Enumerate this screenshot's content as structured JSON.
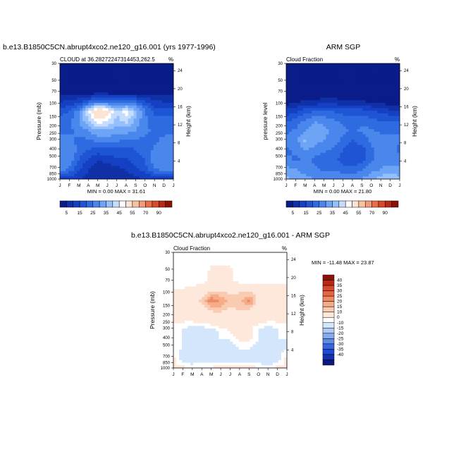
{
  "colors": {
    "fraction_scale": [
      "#0a1c8a",
      "#1030a8",
      "#1540c4",
      "#1e55d4",
      "#2f6be0",
      "#4a87ec",
      "#6ea4f5",
      "#96c0fb",
      "#c4dcfd",
      "#ffffff",
      "#fde4d2",
      "#f8c1a2",
      "#f39a76",
      "#ea6e4b",
      "#d84a2b",
      "#b82a16",
      "#8a1208"
    ],
    "diff_scale": [
      "#0a1880",
      "#1430b0",
      "#1d4ad0",
      "#3766e0",
      "#5e8ae8",
      "#86abef",
      "#aecaf5",
      "#d4e6fb",
      "#ffffff",
      "#fde8db",
      "#f9ccb1",
      "#f5ac88",
      "#f08a62",
      "#e86540",
      "#d84a2b",
      "#b82a16",
      "#8a1208"
    ]
  },
  "months": [
    "J",
    "F",
    "M",
    "A",
    "M",
    "J",
    "J",
    "A",
    "S",
    "O",
    "N",
    "D",
    "J"
  ],
  "pressure_ticks": [
    "30",
    "50",
    "70",
    "100",
    "150",
    "200",
    "250",
    "300",
    "400",
    "500",
    "700",
    "850",
    "1000"
  ],
  "height_ticks": [
    "24",
    "20",
    "16",
    "12",
    "8",
    "4"
  ],
  "panels": {
    "model": {
      "run_title": "b.e13.B1850C5CN.abrupt4xco2.ne120_g16.001 (yrs 1977-1996)",
      "left_title": "CLOUD at 36.28272247314453,262.5",
      "right_title": "%",
      "ylabel": "Pressure (mb)",
      "ylabel_right": "Height (km)",
      "min_max": "MIN =   0.00 MAX =  31.61"
    },
    "obs": {
      "center_title": "ARM SGP",
      "left_title": "Cloud Fraction",
      "right_title": "%",
      "ylabel": "pressure level",
      "ylabel_right": "Height (km)",
      "min_max": "MIN =   0.00 MAX =  21.80"
    },
    "diff": {
      "center_title": "b.e13.B1850C5CN.abrupt4xco2.ne120_g16.001 - ARM SGP",
      "left_title": "Cloud Fraction",
      "right_title": "%",
      "ylabel": "Pressure (mb)",
      "ylabel_right": "Height (km)",
      "min_max": "MIN = -11.48 MAX =  23.87"
    }
  },
  "colorbar_labels": [
    "5",
    "15",
    "25",
    "35",
    "45",
    "55",
    "70",
    "90"
  ],
  "diff_colorbar_labels": [
    "40",
    "35",
    "30",
    "25",
    "20",
    "15",
    "10",
    "0",
    "-10",
    "-15",
    "-20",
    "-25",
    "-30",
    "-35",
    "-40"
  ],
  "chart_data": [
    {
      "type": "heatmap",
      "title": "CLOUD at 36.28272247314453,262.5",
      "xlabel": "",
      "ylabel": "Pressure (mb)",
      "x": [
        "J",
        "F",
        "M",
        "A",
        "M",
        "J",
        "J",
        "A",
        "S",
        "O",
        "N",
        "D",
        "J"
      ],
      "y": [
        30,
        50,
        70,
        100,
        150,
        200,
        250,
        300,
        400,
        500,
        700,
        850,
        1000
      ],
      "z": [
        [
          0,
          0,
          0,
          0,
          0,
          0,
          0,
          0,
          0,
          0,
          0,
          0,
          0
        ],
        [
          0,
          0,
          0,
          0,
          0,
          0,
          0,
          0,
          0,
          0,
          0,
          0,
          0
        ],
        [
          0,
          0,
          0,
          0,
          0,
          0,
          0,
          0,
          0,
          0,
          0,
          0,
          0
        ],
        [
          1,
          1,
          1,
          1,
          1,
          1,
          1,
          1,
          1,
          1,
          1,
          1,
          1
        ],
        [
          5,
          6,
          7,
          10,
          13,
          12,
          11,
          12,
          11,
          8,
          6,
          5,
          5
        ],
        [
          9,
          10,
          14,
          22,
          30,
          27,
          20,
          24,
          19,
          13,
          9,
          9,
          9
        ],
        [
          11,
          12,
          15,
          20,
          24,
          23,
          19,
          21,
          17,
          13,
          11,
          11,
          11
        ],
        [
          12,
          12,
          13,
          15,
          17,
          17,
          16,
          16,
          15,
          13,
          12,
          12,
          12
        ],
        [
          13,
          13,
          12,
          12,
          13,
          14,
          13,
          12,
          12,
          12,
          12,
          13,
          13
        ],
        [
          14,
          14,
          12,
          10,
          9,
          9,
          9,
          9,
          10,
          11,
          13,
          14,
          14
        ],
        [
          15,
          14,
          10,
          7,
          5,
          6,
          7,
          7,
          9,
          10,
          14,
          15,
          15
        ],
        [
          14,
          12,
          8,
          5,
          3,
          3,
          4,
          5,
          7,
          9,
          12,
          14,
          14
        ],
        [
          6,
          6,
          5,
          4,
          3,
          3,
          3,
          4,
          4,
          5,
          6,
          6,
          6
        ]
      ],
      "zlim": [
        0,
        31.61
      ]
    },
    {
      "type": "heatmap",
      "title": "ARM SGP",
      "xlabel": "",
      "ylabel": "pressure level",
      "x": [
        "J",
        "F",
        "M",
        "A",
        "M",
        "J",
        "J",
        "A",
        "S",
        "O",
        "N",
        "D",
        "J"
      ],
      "y": [
        30,
        50,
        70,
        100,
        150,
        200,
        250,
        300,
        400,
        500,
        700,
        850,
        1000
      ],
      "z": [
        [
          0,
          0,
          0,
          0,
          0,
          0,
          0,
          0,
          0,
          0,
          0,
          0,
          0
        ],
        [
          0,
          0,
          0,
          0,
          0,
          0,
          0,
          0,
          0,
          0,
          0,
          0,
          0
        ],
        [
          0,
          0,
          0,
          0,
          0,
          0,
          0,
          0,
          0,
          0,
          0,
          0,
          0
        ],
        [
          0,
          0,
          0,
          0,
          0,
          0,
          0,
          0,
          0,
          0,
          0,
          0,
          0
        ],
        [
          1,
          2,
          3,
          3,
          4,
          4,
          3,
          3,
          3,
          2,
          2,
          1,
          1
        ],
        [
          6,
          7,
          9,
          10,
          11,
          10,
          9,
          9,
          9,
          8,
          7,
          6,
          6
        ],
        [
          10,
          11,
          13,
          15,
          14,
          13,
          12,
          12,
          12,
          11,
          10,
          10,
          10
        ],
        [
          12,
          13,
          15,
          17,
          16,
          14,
          13,
          12,
          13,
          13,
          12,
          12,
          12
        ],
        [
          13,
          14,
          18,
          16,
          15,
          14,
          12,
          10,
          11,
          13,
          14,
          13,
          13
        ],
        [
          12,
          13,
          15,
          14,
          13,
          12,
          10,
          8,
          9,
          12,
          14,
          13,
          12
        ],
        [
          13,
          12,
          13,
          12,
          11,
          11,
          9,
          8,
          9,
          12,
          14,
          14,
          13
        ],
        [
          16,
          15,
          14,
          13,
          12,
          12,
          11,
          11,
          12,
          14,
          15,
          16,
          16
        ],
        [
          18,
          17,
          16,
          15,
          14,
          15,
          15,
          14,
          15,
          17,
          19,
          20,
          18
        ]
      ],
      "zlim": [
        0,
        21.8
      ]
    },
    {
      "type": "heatmap",
      "title": "b.e13.B1850C5CN.abrupt4xco2.ne120_g16.001 - ARM SGP",
      "xlabel": "",
      "ylabel": "Pressure (mb)",
      "x": [
        "J",
        "F",
        "M",
        "A",
        "M",
        "J",
        "J",
        "A",
        "S",
        "O",
        "N",
        "D",
        "J"
      ],
      "y": [
        30,
        50,
        70,
        100,
        150,
        200,
        250,
        300,
        400,
        500,
        700,
        850,
        1000
      ],
      "z": [
        [
          0,
          0,
          0,
          0,
          0,
          0,
          0,
          0,
          0,
          0,
          0,
          0,
          0
        ],
        [
          0,
          0,
          0,
          0,
          0,
          0,
          0,
          0,
          0,
          0,
          0,
          0,
          0
        ],
        [
          -1,
          -1,
          -1,
          -1,
          1,
          1,
          1,
          -1,
          -1,
          -1,
          -1,
          -1,
          -1
        ],
        [
          -1,
          -1,
          -1,
          -1,
          1,
          1,
          1,
          -1,
          -1,
          -1,
          -1,
          -1,
          -1
        ],
        [
          1,
          1,
          2,
          4,
          8,
          9,
          8,
          9,
          8,
          6,
          4,
          3,
          3
        ],
        [
          2,
          3,
          5,
          12,
          24,
          20,
          13,
          14,
          22,
          8,
          3,
          2,
          2
        ],
        [
          1,
          1,
          2,
          5,
          11,
          12,
          8,
          10,
          9,
          4,
          1,
          1,
          1
        ],
        [
          1,
          1,
          1,
          2,
          3,
          3,
          3,
          3,
          3,
          2,
          1,
          1,
          1
        ],
        [
          -1,
          -1,
          -2,
          -2,
          -2,
          0,
          1,
          2,
          1,
          -1,
          -2,
          -1,
          -1
        ],
        [
          -1,
          -1,
          -2,
          -2,
          -3,
          -1,
          -1,
          1,
          1,
          -1,
          -2,
          -1,
          -1
        ],
        [
          -1,
          -1,
          -2,
          -3,
          -3,
          -3,
          -2,
          -1,
          -1,
          -2,
          -3,
          -2,
          -1
        ],
        [
          1,
          -2,
          -4,
          -3,
          -3,
          -2,
          -2,
          -2,
          -2,
          -3,
          -5,
          -2,
          1
        ],
        [
          1,
          1,
          1,
          1,
          1,
          1,
          1,
          1,
          1,
          1,
          1,
          1,
          1
        ]
      ],
      "zlim": [
        -11.48,
        23.87
      ]
    }
  ]
}
